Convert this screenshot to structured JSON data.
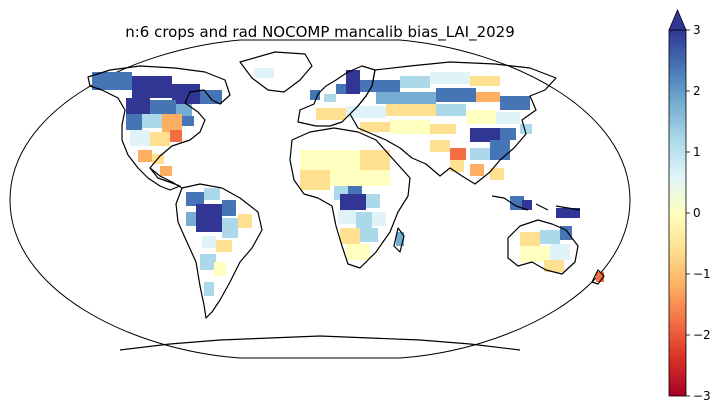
{
  "title": "n:6 crops and rad NOCOMP mancalib  bias_LAI_2029",
  "colorbar": {
    "colormap": "RdYlBu",
    "min": -3,
    "max": 3,
    "extend": "max",
    "ticks": [
      {
        "value": 3,
        "label": "3"
      },
      {
        "value": 2,
        "label": "2"
      },
      {
        "value": 1,
        "label": "1"
      },
      {
        "value": 0,
        "label": "0"
      },
      {
        "value": -1,
        "label": "−1"
      },
      {
        "value": -2,
        "label": "−2"
      },
      {
        "value": -3,
        "label": "−3"
      }
    ]
  },
  "map": {
    "projection": "Robinson",
    "land_color": "#ffffff",
    "coast_color": "#000000"
  }
}
